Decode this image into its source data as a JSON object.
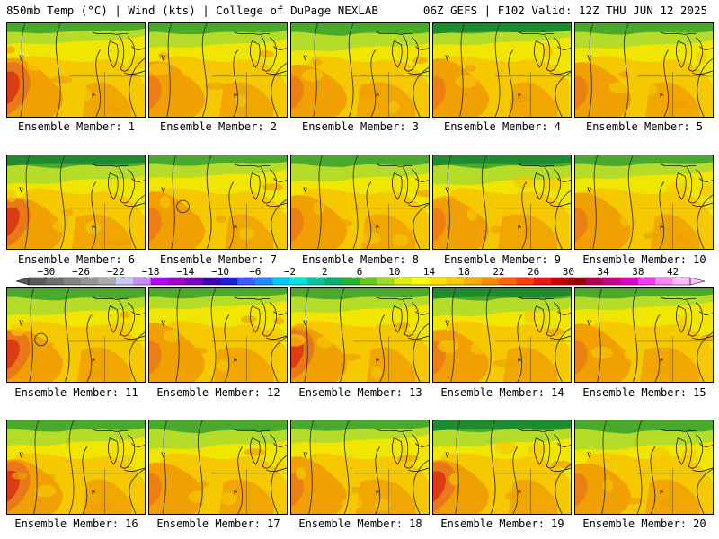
{
  "header": {
    "left": "850mb Temp (°C) | Wind (kts) | College of DuPage NEXLAB",
    "right": "06Z GEFS | F102 Valid: 12Z THU JUN 12 2025"
  },
  "panels": [
    {
      "label": "Ensemble Member: 1"
    },
    {
      "label": "Ensemble Member: 2"
    },
    {
      "label": "Ensemble Member: 3"
    },
    {
      "label": "Ensemble Member: 4"
    },
    {
      "label": "Ensemble Member: 5"
    },
    {
      "label": "Ensemble Member: 6"
    },
    {
      "label": "Ensemble Member: 7"
    },
    {
      "label": "Ensemble Member: 8"
    },
    {
      "label": "Ensemble Member: 9"
    },
    {
      "label": "Ensemble Member: 10"
    },
    {
      "label": "Ensemble Member: 11"
    },
    {
      "label": "Ensemble Member: 12"
    },
    {
      "label": "Ensemble Member: 13"
    },
    {
      "label": "Ensemble Member: 14"
    },
    {
      "label": "Ensemble Member: 15"
    },
    {
      "label": "Ensemble Member: 16"
    },
    {
      "label": "Ensemble Member: 17"
    },
    {
      "label": "Ensemble Member: 18"
    },
    {
      "label": "Ensemble Member: 19"
    },
    {
      "label": "Ensemble Member: 20"
    }
  ],
  "colorbar": {
    "labels": [
      "−30",
      "−26",
      "−22",
      "−18",
      "−14",
      "−10",
      "−6",
      "−2",
      "2",
      "6",
      "10",
      "14",
      "18",
      "22",
      "26",
      "30",
      "34",
      "38",
      "42"
    ],
    "colors": [
      "#5a5a5a",
      "#6e6e6e",
      "#828282",
      "#969696",
      "#aaaaaa",
      "#c8c8ff",
      "#c88cff",
      "#b400ff",
      "#a000c8",
      "#7800c8",
      "#3c00b4",
      "#1e1edc",
      "#3c5aff",
      "#1e8cff",
      "#00c8ff",
      "#00e6dc",
      "#00c8a0",
      "#00b46e",
      "#28b428",
      "#64c81e",
      "#a0dc1e",
      "#dcf000",
      "#ffff00",
      "#ffe100",
      "#ffc800",
      "#ffaa00",
      "#ff8c00",
      "#ff6400",
      "#ff3c00",
      "#f01414",
      "#c80000",
      "#a00000",
      "#b40050",
      "#c8008c",
      "#dc00c8",
      "#f03cf0",
      "#ff82ff",
      "#ffbeff"
    ],
    "tick_values": [
      -30,
      -26,
      -22,
      -18,
      -14,
      -10,
      -6,
      -2,
      2,
      6,
      10,
      14,
      18,
      22,
      26,
      30,
      34,
      38,
      42
    ]
  },
  "palette": {
    "green_dark": "#1e8c2e",
    "green": "#4aa82a",
    "yellow_green": "#b4dc28",
    "yellow": "#f0e600",
    "gold": "#f5c800",
    "orange": "#f0a000",
    "orange_dark": "#e87818",
    "red": "#dc3c14"
  }
}
